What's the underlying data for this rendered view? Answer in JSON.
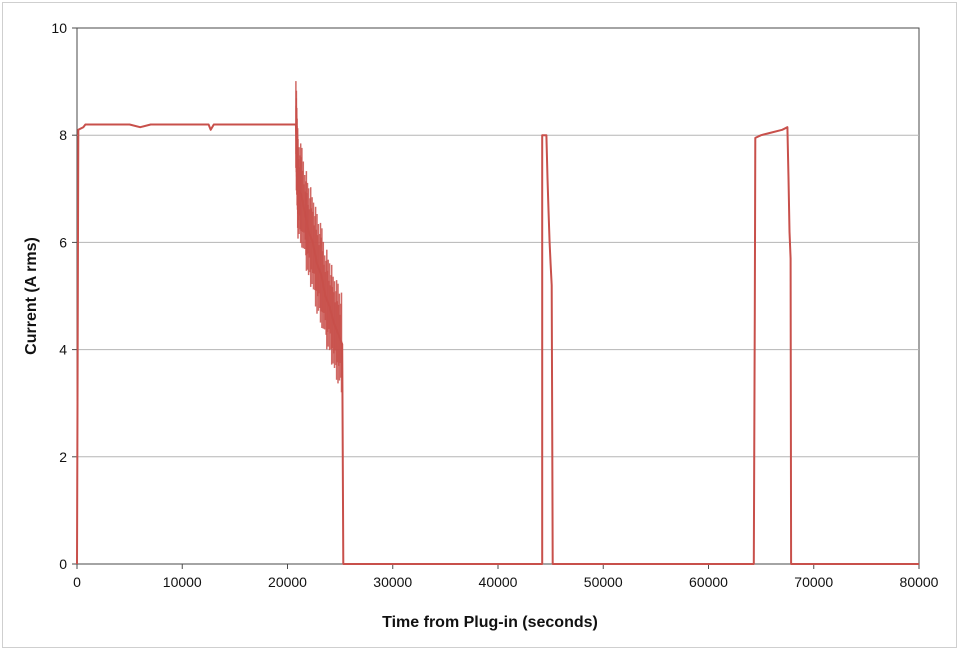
{
  "chart_data": {
    "type": "line",
    "title": "",
    "xlabel": "Time from Plug-in (seconds)",
    "ylabel": "Current (A rms)",
    "xlim": [
      0,
      80000
    ],
    "ylim": [
      0,
      10
    ],
    "x_ticks": [
      "0",
      "10000",
      "20000",
      "30000",
      "40000",
      "50000",
      "60000",
      "70000",
      "80000"
    ],
    "y_ticks": [
      "0",
      "2",
      "4",
      "6",
      "8",
      "10"
    ],
    "grid": "horizontal",
    "legend": "none",
    "series": [
      {
        "color": "#c8504b",
        "points": [
          [
            0,
            0
          ],
          [
            50,
            3.0
          ],
          [
            120,
            8.1
          ],
          [
            600,
            8.15
          ],
          [
            800,
            8.2
          ],
          [
            5000,
            8.2
          ],
          [
            6000,
            8.15
          ],
          [
            7000,
            8.2
          ],
          [
            12500,
            8.2
          ],
          [
            12700,
            8.1
          ],
          [
            13000,
            8.2
          ],
          [
            20800,
            8.2
          ],
          [
            20900,
            7.6
          ],
          [
            21000,
            7.0
          ],
          [
            21300,
            6.9
          ],
          [
            21700,
            6.5
          ],
          [
            22000,
            6.2
          ],
          [
            22400,
            6.0
          ],
          [
            22800,
            5.6
          ],
          [
            23200,
            5.4
          ],
          [
            23600,
            5.0
          ],
          [
            24000,
            4.8
          ],
          [
            24400,
            4.5
          ],
          [
            24800,
            4.3
          ],
          [
            25200,
            4.1
          ],
          [
            25300,
            0
          ],
          [
            44200,
            0
          ],
          [
            44200,
            8.0
          ],
          [
            44600,
            8.0
          ],
          [
            44700,
            7.2
          ],
          [
            44800,
            6.6
          ],
          [
            44900,
            6.0
          ],
          [
            45000,
            5.6
          ],
          [
            45100,
            5.2
          ],
          [
            45200,
            0
          ],
          [
            64300,
            0
          ],
          [
            64400,
            4.7
          ],
          [
            64450,
            7.95
          ],
          [
            65000,
            8.0
          ],
          [
            66000,
            8.05
          ],
          [
            67000,
            8.1
          ],
          [
            67500,
            8.15
          ],
          [
            67600,
            7.2
          ],
          [
            67700,
            6.2
          ],
          [
            67800,
            5.7
          ],
          [
            67850,
            0
          ],
          [
            80000,
            0
          ]
        ]
      }
    ]
  }
}
